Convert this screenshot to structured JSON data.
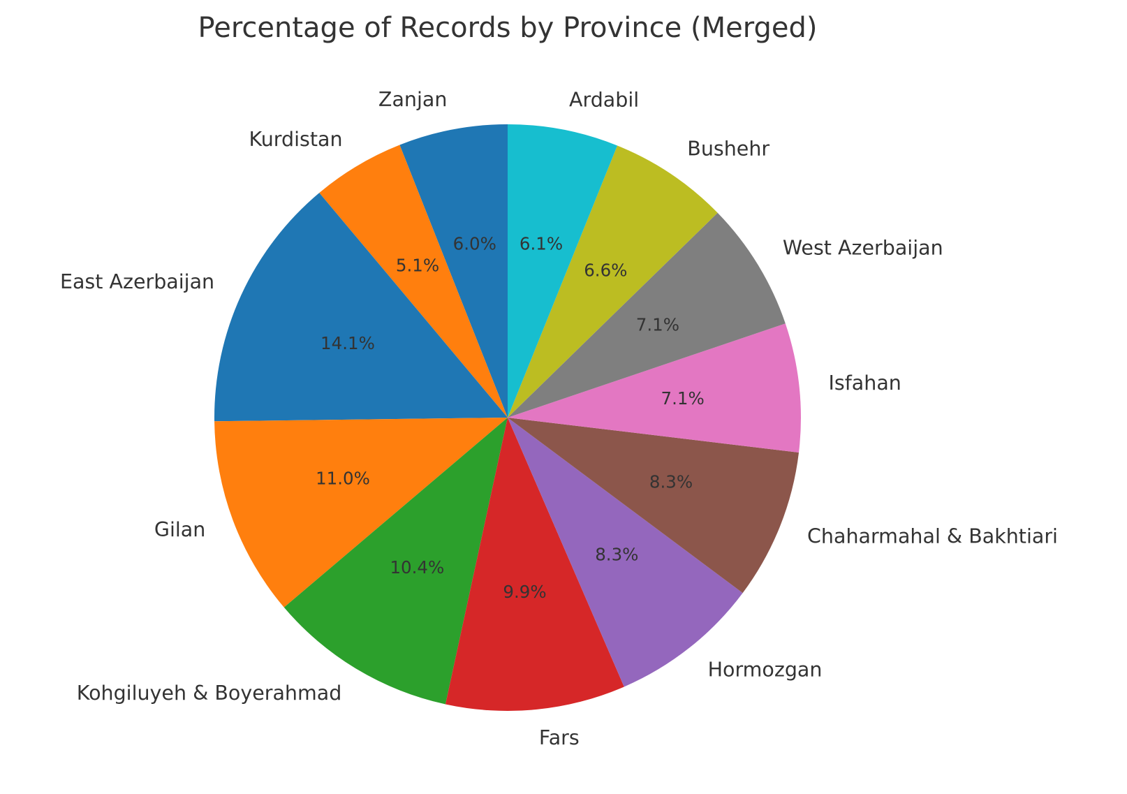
{
  "chart_data": {
    "type": "pie",
    "title": "Percentage of Records by Province (Merged)",
    "start_angle_deg": 90,
    "direction": "counterclockwise",
    "slices": [
      {
        "label": "Zanjan",
        "pct_label": "6.0%",
        "value": 6.0,
        "color": "#1f77b4"
      },
      {
        "label": "Kurdistan",
        "pct_label": "5.1%",
        "value": 5.1,
        "color": "#ff7f0e"
      },
      {
        "label": "East Azerbaijan",
        "pct_label": "14.1%",
        "value": 14.1,
        "color": "#1f77b4"
      },
      {
        "label": "Gilan",
        "pct_label": "11.0%",
        "value": 11.0,
        "color": "#ff7f0e"
      },
      {
        "label": "Kohgiluyeh & Boyerahmad",
        "pct_label": "10.4%",
        "value": 10.4,
        "color": "#2ca02c"
      },
      {
        "label": "Fars",
        "pct_label": "9.9%",
        "value": 9.9,
        "color": "#d62728"
      },
      {
        "label": "Hormozgan",
        "pct_label": "8.3%",
        "value": 8.3,
        "color": "#9467bd"
      },
      {
        "label": "Chaharmahal & Bakhtiari",
        "pct_label": "8.3%",
        "value": 8.3,
        "color": "#8c564b"
      },
      {
        "label": "Isfahan",
        "pct_label": "7.1%",
        "value": 7.1,
        "color": "#e377c2"
      },
      {
        "label": "West Azerbaijan",
        "pct_label": "7.1%",
        "value": 7.1,
        "color": "#7f7f7f"
      },
      {
        "label": "Bushehr",
        "pct_label": "6.6%",
        "value": 6.6,
        "color": "#bcbd22"
      },
      {
        "label": "Ardabil",
        "pct_label": "6.1%",
        "value": 6.1,
        "color": "#17becf"
      }
    ]
  }
}
